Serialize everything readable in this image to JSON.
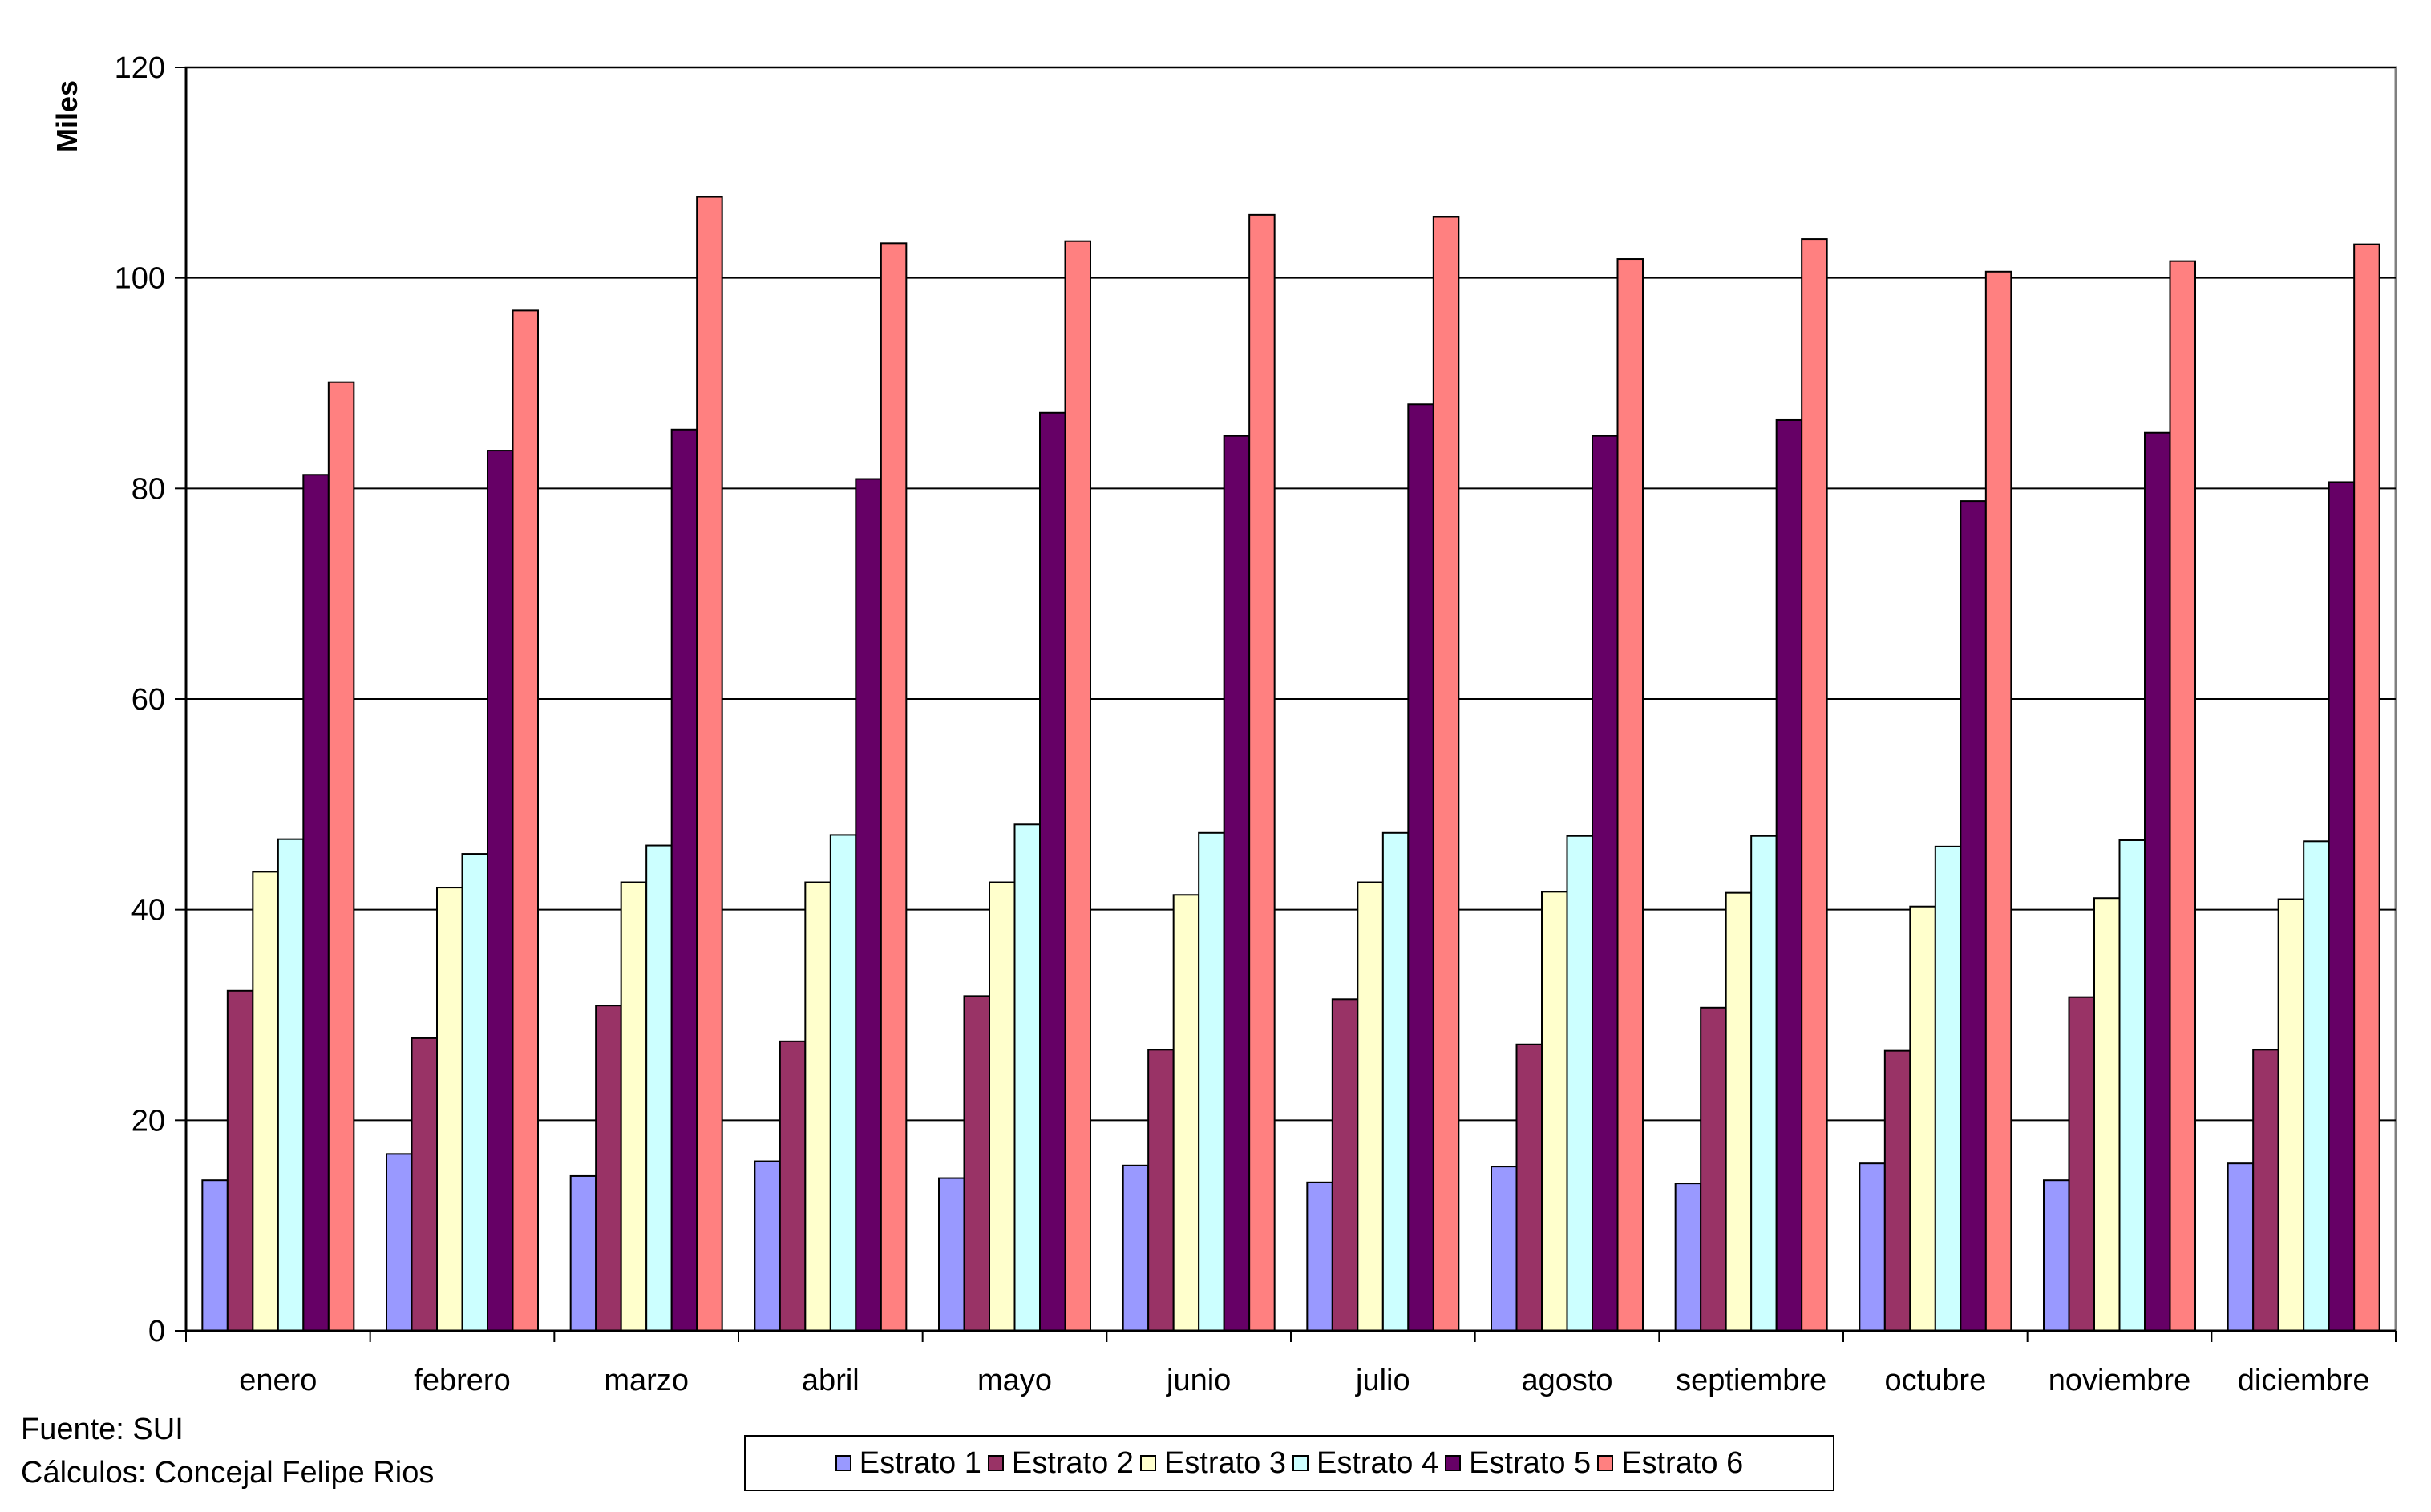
{
  "chart_data": {
    "type": "bar",
    "title": "",
    "xlabel": "",
    "ylabel": "Miles",
    "ylim": [
      0,
      120
    ],
    "yticks": [
      0,
      20,
      40,
      60,
      80,
      100,
      120
    ],
    "grid": true,
    "legend_position": "bottom",
    "categories": [
      "enero",
      "febrero",
      "marzo",
      "abril",
      "mayo",
      "junio",
      "julio",
      "agosto",
      "septiembre",
      "octubre",
      "noviembre",
      "diciembre"
    ],
    "series": [
      {
        "name": "Estrato 1",
        "color": "#9999ff",
        "values": [
          14.3,
          16.8,
          14.7,
          16.1,
          14.5,
          15.7,
          14.1,
          15.6,
          14.0,
          15.9,
          14.3,
          15.9
        ]
      },
      {
        "name": "Estrato 2",
        "color": "#993366",
        "values": [
          32.3,
          27.8,
          30.9,
          27.5,
          31.8,
          26.7,
          31.5,
          27.2,
          30.7,
          26.6,
          31.7,
          26.7
        ]
      },
      {
        "name": "Estrato 3",
        "color": "#ffffcc",
        "values": [
          43.6,
          42.1,
          42.6,
          42.6,
          42.6,
          41.4,
          42.6,
          41.7,
          41.6,
          40.3,
          41.1,
          41.0
        ]
      },
      {
        "name": "Estrato 4",
        "color": "#ccffff",
        "values": [
          46.7,
          45.3,
          46.1,
          47.1,
          48.1,
          47.3,
          47.3,
          47.0,
          47.0,
          46.0,
          46.6,
          46.5
        ]
      },
      {
        "name": "Estrato 5",
        "color": "#660066",
        "values": [
          81.3,
          83.6,
          85.6,
          80.9,
          87.2,
          85.0,
          88.0,
          85.0,
          86.5,
          78.8,
          85.3,
          80.6
        ]
      },
      {
        "name": "Estrato 6",
        "color": "#ff8080",
        "values": [
          90.1,
          96.9,
          107.7,
          103.3,
          103.5,
          106.0,
          105.8,
          101.8,
          103.7,
          100.6,
          101.6,
          103.2
        ]
      }
    ]
  },
  "source": {
    "fuente": "Fuente: SUI",
    "calculos": "Cálculos: Concejal Felipe Rios"
  }
}
